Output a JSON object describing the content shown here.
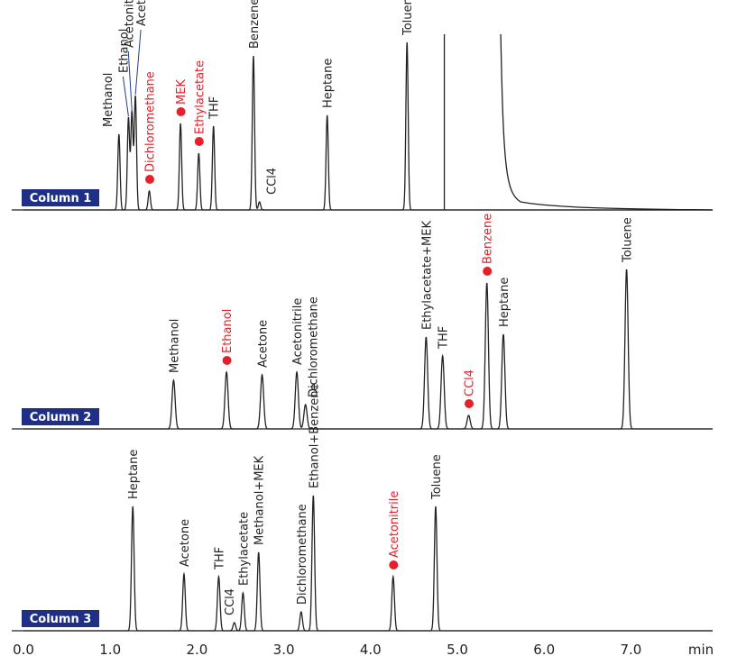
{
  "chart_data": {
    "type": "line",
    "x_unit": "min",
    "xlim": [
      0,
      8.0
    ],
    "x_ticks": [
      {
        "value": 0,
        "label": "0.0"
      },
      {
        "value": 1,
        "label": "1.0"
      },
      {
        "value": 2,
        "label": "2.0"
      },
      {
        "value": 3,
        "label": "3.0"
      },
      {
        "value": 4,
        "label": "4.0"
      },
      {
        "value": 5,
        "label": "5.0"
      },
      {
        "value": 6,
        "label": "6.0"
      },
      {
        "value": 7,
        "label": "7.0"
      }
    ],
    "marker_color": "#e5202a",
    "panels": [
      {
        "name": "Column 1",
        "peaks": [
          {
            "label": "Methanol",
            "rt": 1.1,
            "height": 0.28
          },
          {
            "label": "Ethanol",
            "rt": 1.21,
            "height": 0.34
          },
          {
            "label": "Acetonitrile",
            "rt": 1.25,
            "height": 0.36
          },
          {
            "label": "Acetone",
            "rt": 1.29,
            "height": 0.42
          },
          {
            "label": "Dichloromethane",
            "rt": 1.45,
            "height": 0.07,
            "highlight": true
          },
          {
            "label": "MEK",
            "rt": 1.81,
            "height": 0.32,
            "highlight": true
          },
          {
            "label": "Ethylacetate",
            "rt": 2.02,
            "height": 0.21,
            "highlight": true
          },
          {
            "label": "THF",
            "rt": 2.19,
            "height": 0.31
          },
          {
            "label": "Benzene",
            "rt": 2.65,
            "height": 0.57
          },
          {
            "label": "CCl4",
            "rt": 2.72,
            "height": 0.03
          },
          {
            "label": "Heptane",
            "rt": 3.5,
            "height": 0.35
          },
          {
            "label": "Toluene",
            "rt": 4.42,
            "height": 0.62
          }
        ]
      },
      {
        "name": "Column 2",
        "peaks": [
          {
            "label": "Methanol",
            "rt": 1.73,
            "height": 0.18
          },
          {
            "label": "Ethanol",
            "rt": 2.34,
            "height": 0.21,
            "highlight": true
          },
          {
            "label": "Acetone",
            "rt": 2.75,
            "height": 0.2
          },
          {
            "label": "Acetonitrile",
            "rt": 3.15,
            "height": 0.21
          },
          {
            "label": "Dichloromethane",
            "rt": 3.25,
            "height": 0.09
          },
          {
            "label": "Ethylacetate+MEK",
            "rt": 4.64,
            "height": 0.34
          },
          {
            "label": "THF",
            "rt": 4.83,
            "height": 0.27
          },
          {
            "label": "CCl4",
            "rt": 5.13,
            "height": 0.05,
            "highlight": true
          },
          {
            "label": "Benzene",
            "rt": 5.34,
            "height": 0.54,
            "highlight": true
          },
          {
            "label": "Heptane",
            "rt": 5.53,
            "height": 0.35
          },
          {
            "label": "Toluene",
            "rt": 6.95,
            "height": 0.59
          }
        ]
      },
      {
        "name": "Column 3",
        "peaks": [
          {
            "label": "Heptane",
            "rt": 1.26,
            "height": 0.46
          },
          {
            "label": "Acetone",
            "rt": 1.85,
            "height": 0.21
          },
          {
            "label": "THF",
            "rt": 2.25,
            "height": 0.2
          },
          {
            "label": "CCl4",
            "rt": 2.43,
            "height": 0.03
          },
          {
            "label": "Ethylacetate",
            "rt": 2.53,
            "height": 0.14
          },
          {
            "label": "Methanol+MEK",
            "rt": 2.71,
            "height": 0.29
          },
          {
            "label": "Dichloromethane",
            "rt": 3.2,
            "height": 0.07
          },
          {
            "label": "Ethanol+Benzene",
            "rt": 3.34,
            "height": 0.5
          },
          {
            "label": "Acetonitrile",
            "rt": 4.26,
            "height": 0.2,
            "highlight": true
          },
          {
            "label": "Toluene",
            "rt": 4.75,
            "height": 0.46
          }
        ]
      }
    ]
  }
}
